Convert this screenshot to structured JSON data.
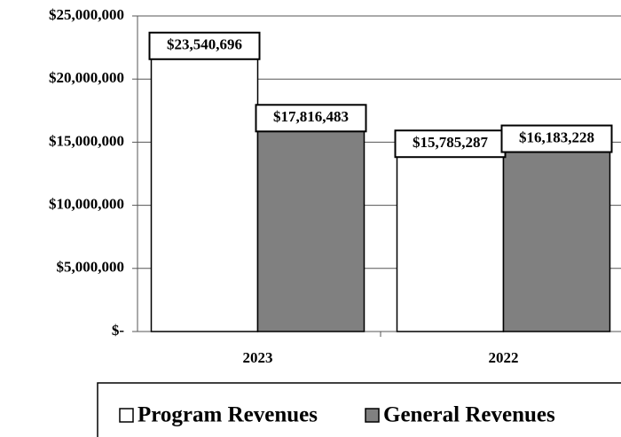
{
  "chart_data": {
    "type": "bar",
    "categories": [
      "2023",
      "2022"
    ],
    "series": [
      {
        "name": "Program Revenues",
        "color": "#ffffff",
        "values": [
          23540696,
          15785287
        ],
        "value_labels": [
          "$23,540,696",
          "$15,785,287"
        ]
      },
      {
        "name": "General Revenues",
        "color": "#808080",
        "values": [
          17816483,
          16183228
        ],
        "value_labels": [
          "$17,816,483",
          "$16,183,228"
        ]
      }
    ],
    "ylim": [
      0,
      25000000
    ],
    "yticks": [
      {
        "value": 0,
        "label": "$-"
      },
      {
        "value": 5000000,
        "label": "$5,000,000"
      },
      {
        "value": 10000000,
        "label": "$10,000,000"
      },
      {
        "value": 15000000,
        "label": "$15,000,000"
      },
      {
        "value": 20000000,
        "label": "$20,000,000"
      },
      {
        "value": 25000000,
        "label": "$25,000,000"
      }
    ],
    "grid": true,
    "legend": "bottom"
  }
}
